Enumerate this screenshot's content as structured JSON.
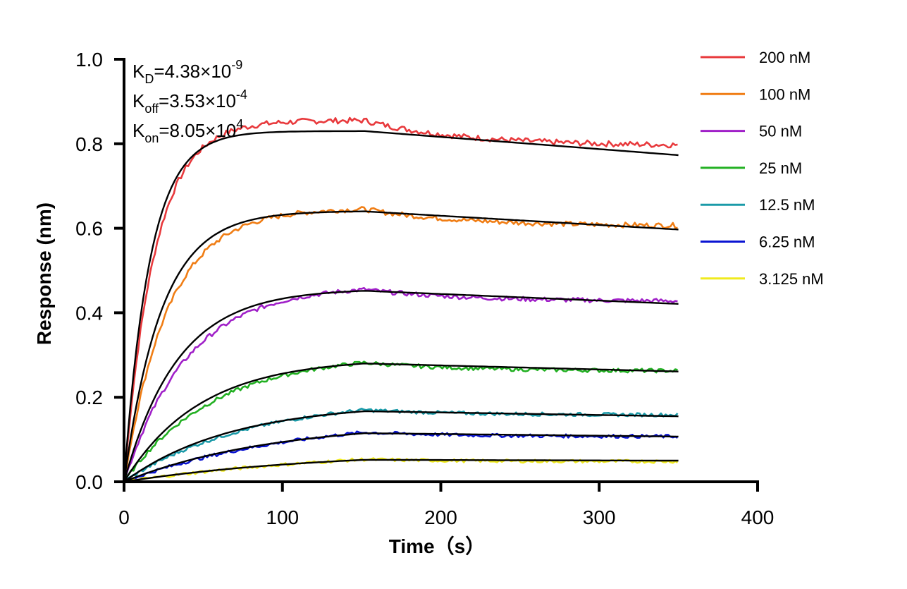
{
  "chart_data": {
    "type": "line",
    "title": "",
    "xlabel": "Time（s）",
    "ylabel": "Response (nm)",
    "xlim": [
      0,
      400
    ],
    "ylim": [
      0,
      1.0
    ],
    "x_ticks": [
      "0",
      "100",
      "200",
      "300",
      "400"
    ],
    "y_ticks": [
      "0.0",
      "0.2",
      "0.4",
      "0.6",
      "0.8",
      "1.0"
    ],
    "grid": false,
    "legend_position": "right",
    "association_end": 152,
    "time_end": 350,
    "annotations": {
      "kd_main": "K",
      "kd_sub": "D",
      "kd_value": "=4.38×10",
      "kd_exp": "-9",
      "koff_main": "K",
      "koff_sub": "off",
      "koff_value": "=3.53×10",
      "koff_exp": "-4",
      "kon_main": "K",
      "kon_sub": "on",
      "kon_value": "=8.05×10",
      "kon_exp": "4"
    },
    "series": [
      {
        "name": "200 nM",
        "color": "#e8393c",
        "plateau": 0.83,
        "peak": 0.855,
        "dissoc_end": 0.795,
        "fit_end": 0.773
      },
      {
        "name": "100 nM",
        "color": "#f07d14",
        "plateau": 0.64,
        "peak": 0.645,
        "dissoc_end": 0.605,
        "fit_end": 0.597
      },
      {
        "name": "50 nM",
        "color": "#a020c8",
        "plateau": 0.452,
        "peak": 0.455,
        "dissoc_end": 0.427,
        "fit_end": 0.421
      },
      {
        "name": "25 nM",
        "color": "#22b022",
        "plateau": 0.28,
        "peak": 0.282,
        "dissoc_end": 0.262,
        "fit_end": 0.261
      },
      {
        "name": "12.5 nM",
        "color": "#1a9aa8",
        "plateau": 0.167,
        "peak": 0.17,
        "dissoc_end": 0.158,
        "fit_end": 0.155
      },
      {
        "name": "6.25 nM",
        "color": "#0a14d2",
        "plateau": 0.115,
        "peak": 0.117,
        "dissoc_end": 0.107,
        "fit_end": 0.107
      },
      {
        "name": "3.125 nM",
        "color": "#f0ea1e",
        "plateau": 0.052,
        "peak": 0.053,
        "dissoc_end": 0.048,
        "fit_end": 0.05
      }
    ]
  }
}
